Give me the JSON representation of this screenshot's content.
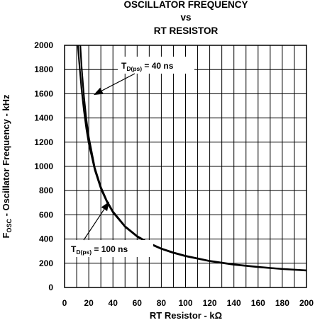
{
  "chart_data": {
    "type": "line",
    "title_lines": [
      "OSCILLATOR FREQUENCY",
      "vs",
      "RT RESISTOR"
    ],
    "xlabel": "RT Resistor - kΩ",
    "ylabel": {
      "main": "F",
      "sub": "OSC",
      "rest": " - Oscillator Frequency - kHz"
    },
    "xlim": [
      0,
      200
    ],
    "ylim": [
      0,
      2000
    ],
    "x_ticks": [
      0,
      20,
      40,
      60,
      80,
      100,
      120,
      140,
      160,
      180,
      200
    ],
    "y_ticks": [
      0,
      200,
      400,
      600,
      800,
      1000,
      1200,
      1400,
      1600,
      1800,
      2000
    ],
    "x_tick_labels": [
      "0",
      "20",
      "40",
      "60",
      "80",
      "100",
      "120",
      "140",
      "160",
      "180",
      "200"
    ],
    "y_tick_labels": [
      "0",
      "200",
      "400",
      "600",
      "800",
      "1000",
      "1200",
      "1400",
      "1600",
      "1800",
      "2000"
    ],
    "x_minor_step": 10,
    "grid": true,
    "series": [
      {
        "x": [
          11,
          12,
          14,
          16,
          18,
          20,
          25,
          30,
          35,
          40,
          50,
          60,
          70,
          80,
          90,
          100,
          120,
          140,
          160,
          180,
          200
        ],
        "y": [
          2000,
          1870,
          1640,
          1460,
          1310,
          1190,
          970,
          815,
          705,
          620,
          500,
          420,
          362,
          318,
          285,
          258,
          217,
          188,
          168,
          152,
          140
        ]
      },
      {
        "x": [
          13,
          14,
          16,
          18,
          20,
          25,
          30,
          35,
          40,
          50,
          60,
          70,
          80,
          90,
          100,
          120,
          140,
          160,
          180,
          200
        ],
        "y": [
          2000,
          1830,
          1580,
          1390,
          1245,
          990,
          830,
          715,
          628,
          506,
          425,
          367,
          322,
          289,
          262,
          220,
          191,
          170,
          154,
          142
        ]
      }
    ],
    "annotations": [
      {
        "main": "T",
        "sub": "D(ps)",
        "rest": " = 40 ns",
        "at": [
          24,
          1590
        ]
      },
      {
        "main": "T",
        "sub": "D(ps)",
        "rest": " = 100 ns",
        "at": [
          37,
          710
        ]
      }
    ]
  }
}
